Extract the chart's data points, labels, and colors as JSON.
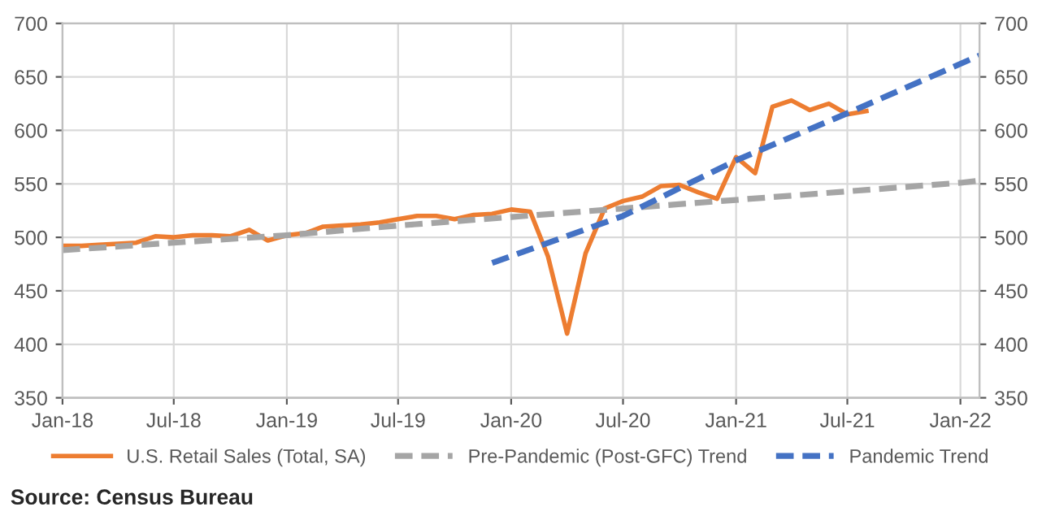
{
  "chart_data": {
    "type": "line",
    "xlim": [
      "2018-01",
      "2022-02"
    ],
    "xticks": [
      {
        "value": "2018-01",
        "label": "Jan-18"
      },
      {
        "value": "2018-07",
        "label": "Jul-18"
      },
      {
        "value": "2019-01",
        "label": "Jan-19"
      },
      {
        "value": "2019-07",
        "label": "Jul-19"
      },
      {
        "value": "2020-01",
        "label": "Jan-20"
      },
      {
        "value": "2020-07",
        "label": "Jul-20"
      },
      {
        "value": "2021-01",
        "label": "Jan-21"
      },
      {
        "value": "2021-07",
        "label": "Jul-21"
      },
      {
        "value": "2022-01",
        "label": "Jan-22"
      }
    ],
    "ylim": [
      350,
      700
    ],
    "yticks": [
      350,
      400,
      450,
      500,
      550,
      600,
      650,
      700
    ],
    "y2lim": [
      350,
      700
    ],
    "y2ticks": [
      350,
      400,
      450,
      500,
      550,
      600,
      650,
      700
    ],
    "grid": true,
    "legend": "bottom",
    "marker": "none",
    "series": [
      {
        "name": "U.S. Retail Sales (Total, SA)",
        "color": "#ed7d31",
        "line_style": "solid",
        "x": [
          "2018-01",
          "2018-02",
          "2018-03",
          "2018-04",
          "2018-05",
          "2018-06",
          "2018-07",
          "2018-08",
          "2018-09",
          "2018-10",
          "2018-11",
          "2018-12",
          "2019-01",
          "2019-02",
          "2019-03",
          "2019-04",
          "2019-05",
          "2019-06",
          "2019-07",
          "2019-08",
          "2019-09",
          "2019-10",
          "2019-11",
          "2019-12",
          "2020-01",
          "2020-02",
          "2020-03",
          "2020-04",
          "2020-05",
          "2020-06",
          "2020-07",
          "2020-08",
          "2020-09",
          "2020-10",
          "2020-11",
          "2020-12",
          "2021-01",
          "2021-02",
          "2021-03",
          "2021-04",
          "2021-05",
          "2021-06",
          "2021-07",
          "2021-08"
        ],
        "values": [
          492,
          492,
          493,
          494,
          495,
          501,
          500,
          502,
          502,
          501,
          507,
          497,
          502,
          504,
          510,
          511,
          512,
          514,
          517,
          520,
          520,
          517,
          521,
          522,
          526,
          524,
          482,
          410,
          485,
          527,
          534,
          538,
          548,
          549,
          542,
          536,
          575,
          560,
          622,
          628,
          619,
          625,
          615,
          618
        ]
      },
      {
        "name": "Pre-Pandemic (Post-GFC) Trend",
        "color": "#a5a5a5",
        "line_style": "dashed",
        "x": [
          "2018-01",
          "2018-07",
          "2019-01",
          "2019-07",
          "2020-01",
          "2020-07",
          "2021-01",
          "2021-07",
          "2022-01",
          "2022-02"
        ],
        "values": [
          488,
          495,
          502,
          511,
          519,
          527,
          535,
          543,
          551,
          553
        ]
      },
      {
        "name": "Pandemic Trend",
        "color": "#4472c4",
        "line_style": "dashed",
        "x": [
          "2019-12",
          "2020-07",
          "2021-01",
          "2021-07",
          "2022-02"
        ],
        "values": [
          476,
          520,
          572,
          616,
          670
        ]
      }
    ],
    "annotations": [
      "Source: Census Bureau"
    ]
  }
}
